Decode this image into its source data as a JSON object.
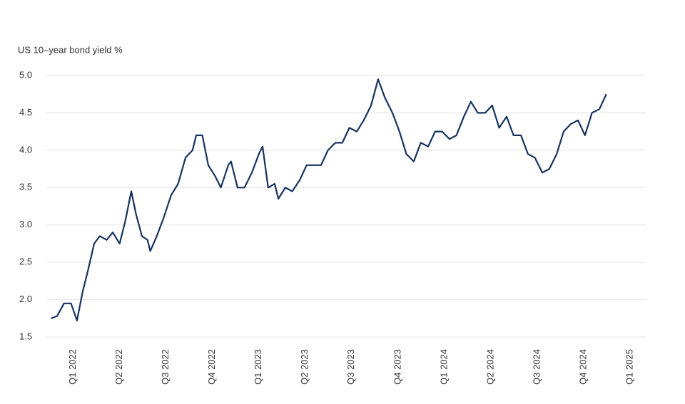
{
  "chart_data": {
    "type": "line",
    "title": "US 10–year bond yield %",
    "x": [
      -0.48,
      -0.35,
      -0.2,
      -0.05,
      0.08,
      0.2,
      0.32,
      0.45,
      0.57,
      0.72,
      0.85,
      1.0,
      1.12,
      1.25,
      1.35,
      1.48,
      1.6,
      1.66,
      1.8,
      1.95,
      2.11,
      2.26,
      2.42,
      2.57,
      2.65,
      2.78,
      2.91,
      3.06,
      3.18,
      3.34,
      3.4,
      3.54,
      3.69,
      3.85,
      4.0,
      4.08,
      4.2,
      4.34,
      4.42,
      4.57,
      4.72,
      4.88,
      5.03,
      5.18,
      5.34,
      5.49,
      5.65,
      5.8,
      5.95,
      6.11,
      6.26,
      6.42,
      6.57,
      6.72,
      6.88,
      7.03,
      7.18,
      7.34,
      7.49,
      7.65,
      7.8,
      7.95,
      8.11,
      8.26,
      8.42,
      8.57,
      8.72,
      8.88,
      9.03,
      9.18,
      9.34,
      9.49,
      9.65,
      9.8,
      9.95,
      10.11,
      10.26,
      10.42,
      10.57,
      10.72,
      10.88,
      11.03,
      11.18,
      11.34,
      11.49
    ],
    "values": [
      1.75,
      1.78,
      1.95,
      1.95,
      1.72,
      2.1,
      2.4,
      2.75,
      2.85,
      2.8,
      2.9,
      2.75,
      3.05,
      3.45,
      3.15,
      2.85,
      2.8,
      2.65,
      2.85,
      3.1,
      3.4,
      3.55,
      3.9,
      4.0,
      4.2,
      4.2,
      3.8,
      3.65,
      3.5,
      3.8,
      3.85,
      3.5,
      3.5,
      3.7,
      3.95,
      4.05,
      3.5,
      3.55,
      3.35,
      3.5,
      3.45,
      3.6,
      3.8,
      3.8,
      3.8,
      4.0,
      4.1,
      4.1,
      4.3,
      4.25,
      4.4,
      4.6,
      4.95,
      4.7,
      4.5,
      4.25,
      3.95,
      3.85,
      4.1,
      4.05,
      4.25,
      4.25,
      4.15,
      4.2,
      4.45,
      4.65,
      4.5,
      4.5,
      4.6,
      4.3,
      4.45,
      4.2,
      4.2,
      3.95,
      3.9,
      3.7,
      3.75,
      3.95,
      4.25,
      4.35,
      4.4,
      4.2,
      4.5,
      4.55,
      4.75
    ],
    "color": "#17325f",
    "xlim": [
      -0.58,
      12.34
    ],
    "xticks": [
      {
        "value": 0,
        "label": "Q1 2022"
      },
      {
        "value": 1,
        "label": "Q2 2022"
      },
      {
        "value": 2,
        "label": "Q3 2022"
      },
      {
        "value": 3,
        "label": "Q4 2022"
      },
      {
        "value": 4,
        "label": "Q1 2023"
      },
      {
        "value": 5,
        "label": "Q2 2023"
      },
      {
        "value": 6,
        "label": "Q3 2023"
      },
      {
        "value": 7,
        "label": "Q4 2023"
      },
      {
        "value": 8,
        "label": "Q1 2024"
      },
      {
        "value": 9,
        "label": "Q2 2024"
      },
      {
        "value": 10,
        "label": "Q3 2024"
      },
      {
        "value": 11,
        "label": "Q4 2024"
      },
      {
        "value": 12,
        "label": "Q1 2025"
      }
    ],
    "ylim": [
      1.5,
      5.0
    ],
    "yticks": [
      1.5,
      {
        "value": 2.0,
        "label": "2.0"
      },
      2.5,
      {
        "value": 3.0,
        "label": "3.0"
      },
      3.5,
      {
        "value": 4.0,
        "label": "4.0"
      },
      4.5,
      {
        "value": 5.0,
        "label": "5.0"
      }
    ],
    "grid": true
  }
}
